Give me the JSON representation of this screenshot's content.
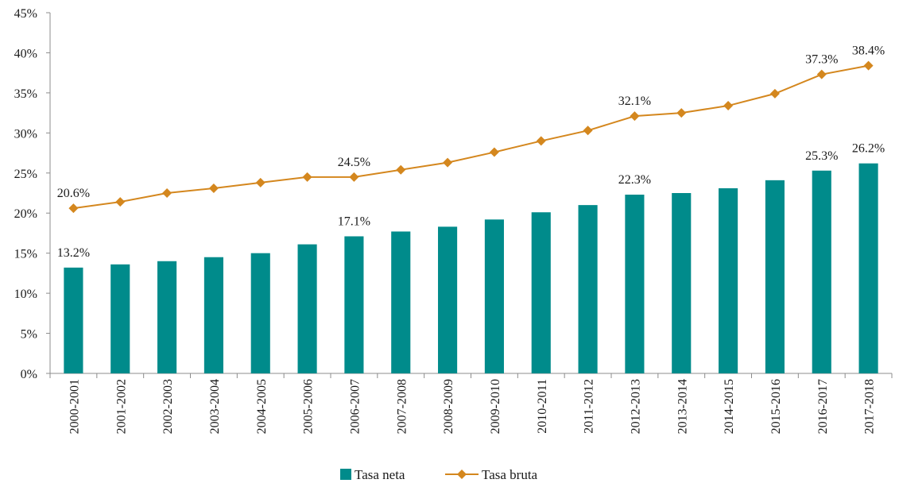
{
  "chart_data": {
    "type": "bar+line",
    "title": "",
    "xlabel": "",
    "ylabel": "",
    "ylim": [
      0,
      45
    ],
    "y_ticks": [
      "0%",
      "5%",
      "10%",
      "15%",
      "20%",
      "25%",
      "30%",
      "35%",
      "40%",
      "45%"
    ],
    "categories": [
      "2000-2001",
      "2001-2002",
      "2002-2003",
      "2003-2004",
      "2004-2005",
      "2005-2006",
      "2006-2007",
      "2007-2008",
      "2008-2009",
      "2009-2010",
      "2010-2011",
      "2011-2012",
      "2012-2013",
      "2013-2014",
      "2014-2015",
      "2015-2016",
      "2016-2017",
      "2017-2018"
    ],
    "series": [
      {
        "name": "Tasa neta",
        "kind": "bar",
        "color": "#008B8B",
        "values": [
          13.2,
          13.6,
          14.0,
          14.5,
          15.0,
          16.1,
          17.1,
          17.7,
          18.3,
          19.2,
          20.1,
          21.0,
          22.3,
          22.5,
          23.1,
          24.1,
          25.3,
          26.2
        ],
        "labels": [
          {
            "index": 0,
            "text": "13.2%"
          },
          {
            "index": 6,
            "text": "17.1%"
          },
          {
            "index": 12,
            "text": "22.3%"
          },
          {
            "index": 16,
            "text": "25.3%"
          },
          {
            "index": 17,
            "text": "26.2%"
          }
        ]
      },
      {
        "name": "Tasa bruta",
        "kind": "line",
        "color": "#D4871E",
        "values": [
          20.6,
          21.4,
          22.5,
          23.1,
          23.8,
          24.5,
          24.5,
          25.4,
          26.3,
          27.6,
          29.0,
          30.3,
          32.1,
          32.5,
          33.4,
          34.9,
          37.3,
          38.4
        ],
        "labels": [
          {
            "index": 0,
            "text": "20.6%"
          },
          {
            "index": 6,
            "text": "24.5%"
          },
          {
            "index": 12,
            "text": "32.1%"
          },
          {
            "index": 16,
            "text": "37.3%"
          },
          {
            "index": 17,
            "text": "38.4%"
          }
        ]
      }
    ],
    "legend": {
      "position": "bottom-center",
      "items": [
        "Tasa neta",
        "Tasa bruta"
      ]
    }
  }
}
